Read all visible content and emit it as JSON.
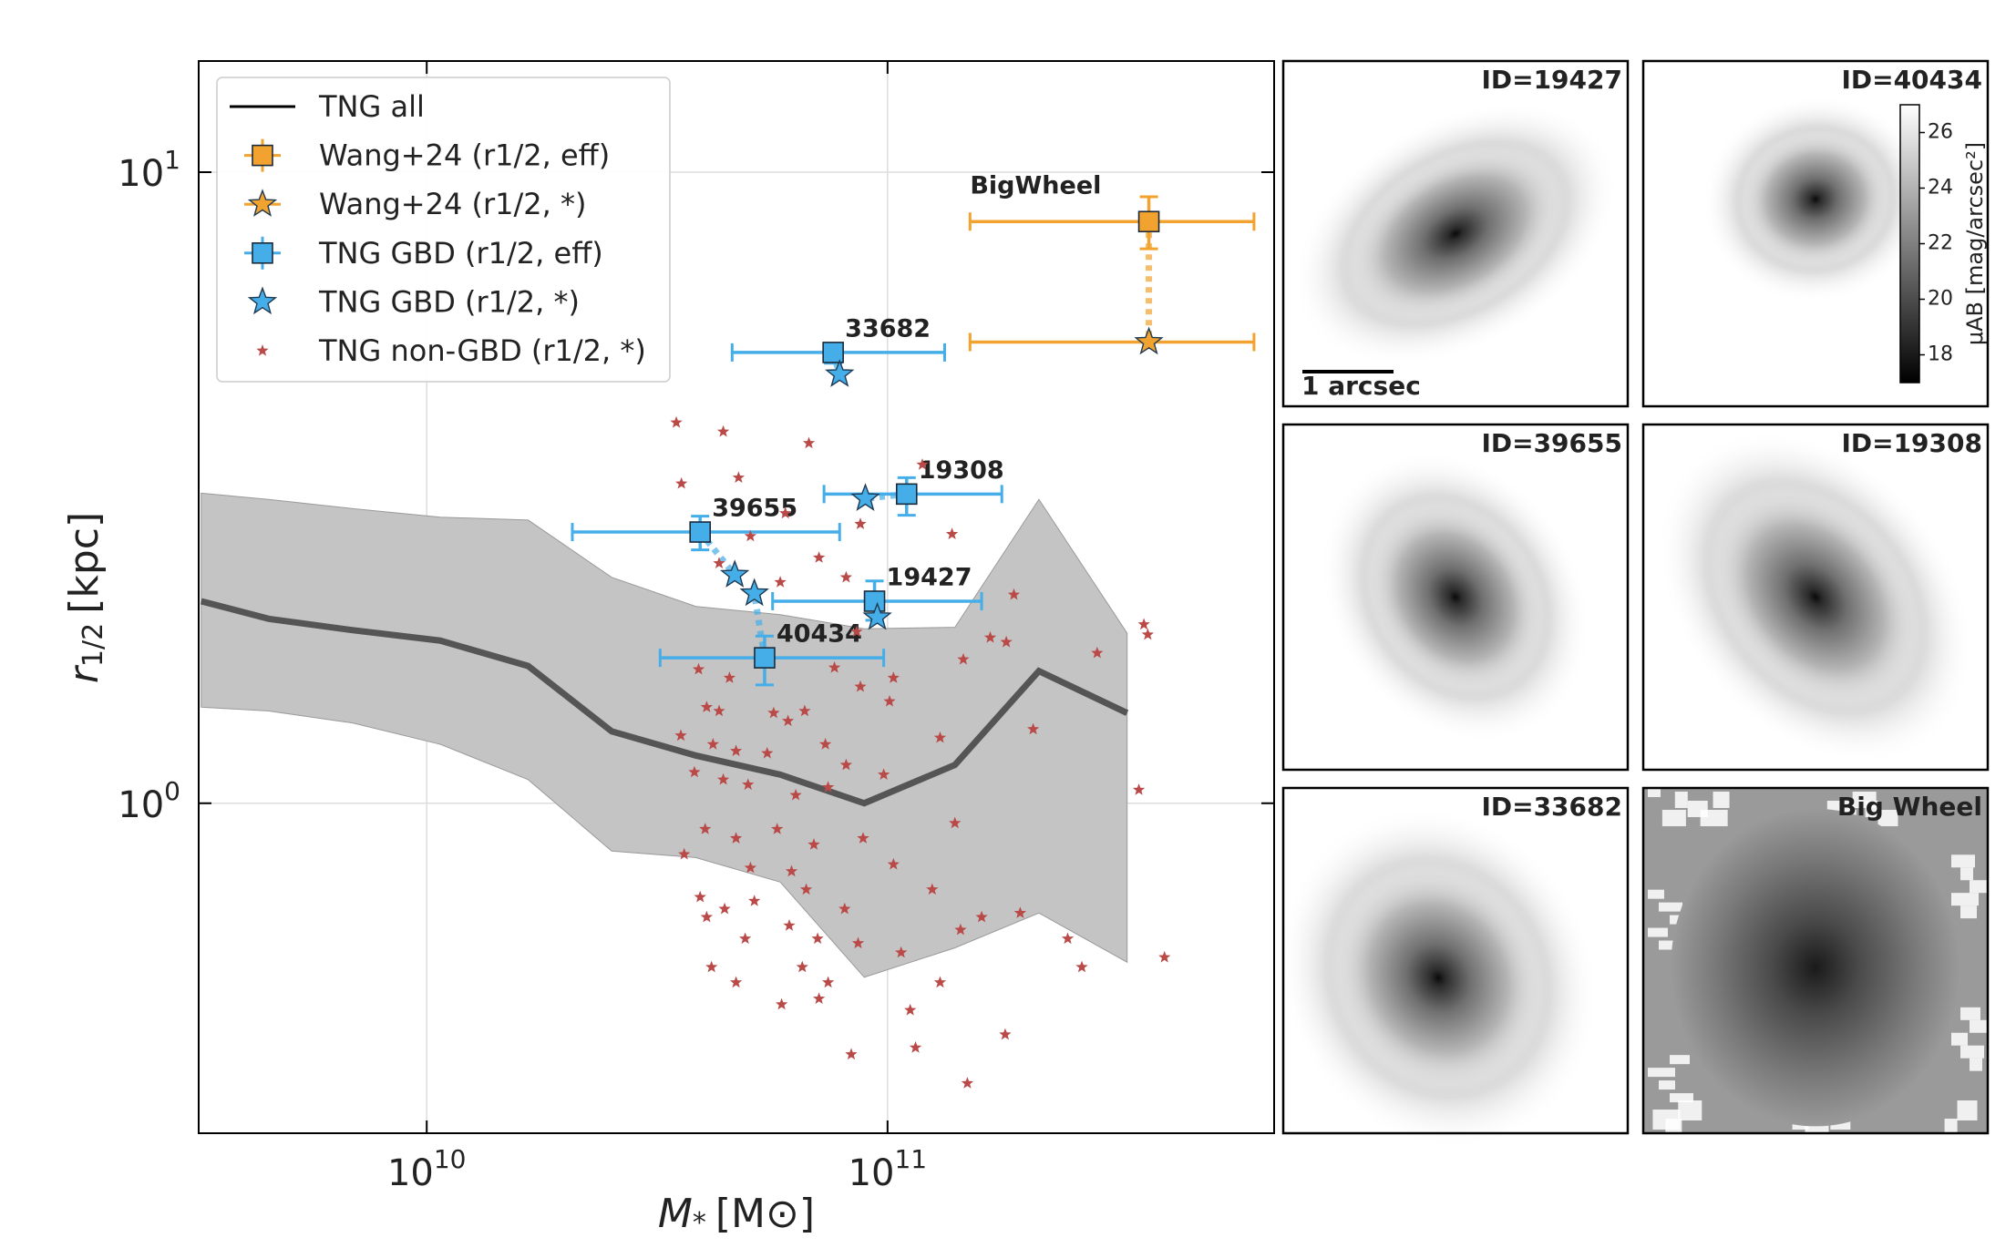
{
  "chart_data": {
    "type": "scatter",
    "xscale": "log",
    "yscale": "log",
    "grid": true,
    "legend": "upper left",
    "xlabel": {
      "symbol": "M",
      "sub": "*",
      "unit": "[M⊙]"
    },
    "ylabel": {
      "symbol": "r",
      "sub": "1/2",
      "unit": "[kpc]"
    },
    "xlim": [
      3200000000.0,
      690000000000.0
    ],
    "ylim": [
      0.3,
      15
    ],
    "xticks": [
      {
        "value": 10000000000.0,
        "label": "10",
        "exponent": "10"
      },
      {
        "value": 100000000000.0,
        "label": "10",
        "exponent": "11"
      }
    ],
    "yticks": [
      {
        "value": 1,
        "label": "10",
        "exponent": "0"
      },
      {
        "value": 10,
        "label": "10",
        "exponent": "1"
      }
    ],
    "series": [
      {
        "name": "TNG all",
        "marker": "line",
        "color": "#555555",
        "band_color": "#c4c4c4",
        "x": [
          3240000000.0,
          4540000000.0,
          6920000000.0,
          10700000000.0,
          16600000000.0,
          25200000000.0,
          38400000000.0,
          58500000000.0,
          89000000000.0,
          140000000000.0,
          213000000000.0,
          331000000000.0
        ],
        "values": [
          2.09,
          1.96,
          1.88,
          1.81,
          1.65,
          1.3,
          1.19,
          1.11,
          1.0,
          1.15,
          1.62,
          1.39
        ],
        "upper": [
          3.1,
          3.03,
          2.93,
          2.84,
          2.81,
          2.28,
          2.05,
          1.99,
          1.89,
          1.9,
          3.03,
          1.86
        ],
        "lower": [
          1.42,
          1.4,
          1.34,
          1.24,
          1.09,
          0.84,
          0.82,
          0.75,
          0.53,
          0.59,
          0.67,
          0.56
        ]
      },
      {
        "name": "Wang+24 (r1/2, eff)",
        "marker": "square",
        "color": "#f2a22e",
        "x": [
          369000000000.0
        ],
        "values": [
          8.35
        ],
        "x_low": [
          151000000000.0
        ],
        "x_high": [
          624000000000.0
        ],
        "y_low": [
          7.56
        ],
        "y_high": [
          9.14
        ],
        "labels": [
          "BigWheel"
        ]
      },
      {
        "name": "Wang+24 (r1/2, *)",
        "marker": "star",
        "color": "#f2a22e",
        "x": [
          369000000000.0
        ],
        "values": [
          5.38
        ],
        "x_low": [
          151000000000.0
        ],
        "x_high": [
          624000000000.0
        ]
      },
      {
        "name": "TNG GBD (r1/2, eff)",
        "marker": "square",
        "color": "#45aee8",
        "x": [
          76200000000.0,
          110000000000.0,
          39200000000.0,
          93700000000.0,
          54100000000.0
        ],
        "values": [
          5.18,
          3.09,
          2.69,
          2.09,
          1.7
        ],
        "x_low": [
          46000000000.0,
          72800000000.0,
          20700000000.0,
          56300000000.0,
          32100000000.0
        ],
        "x_high": [
          133000000000.0,
          177000000000.0,
          78700000000.0,
          160000000000.0,
          98100000000.0
        ],
        "y_low": [
          4.98,
          2.86,
          2.52,
          1.95,
          1.54
        ],
        "y_high": [
          5.35,
          3.28,
          2.85,
          2.25,
          1.84
        ],
        "labels": [
          "33682",
          "19308",
          "39655",
          "19427",
          "40434"
        ]
      },
      {
        "name": "TNG GBD (r1/2, *)",
        "marker": "star",
        "color": "#45aee8",
        "x": [
          78700000000.0,
          89500000000.0,
          46600000000.0,
          95000000000.0,
          51400000000.0
        ],
        "values": [
          4.78,
          3.04,
          2.3,
          1.97,
          2.15
        ]
      },
      {
        "name": "TNG non-GBD (r1/2, *)",
        "marker": "small-star",
        "color": "#b94a48",
        "x": [
          34800000000.0,
          44000000000.0,
          67500000000.0,
          47500000000.0,
          35700000000.0,
          119000000000.0,
          60000000000.0,
          87300000000.0,
          138000000000.0,
          50400000000.0,
          71000000000.0,
          81300000000.0,
          43100000000.0,
          58500000000.0,
          188000000000.0,
          360000000000.0,
          367000000000.0,
          285000000000.0,
          167000000000.0,
          181000000000.0,
          85700000000.0,
          146000000000.0,
          38900000000.0,
          45400000000.0,
          76700000000.0,
          87300000000.0,
          103000000000.0,
          40500000000.0,
          43100000000.0,
          56600000000.0,
          60800000000.0,
          66100000000.0,
          101000000000.0,
          207000000000.0,
          130000000000.0,
          35600000000.0,
          41800000000.0,
          46900000000.0,
          54800000000.0,
          73300000000.0,
          81300000000.0,
          38100000000.0,
          44000000000.0,
          49800000000.0,
          63200000000.0,
          74300000000.0,
          98100000000.0,
          140000000000.0,
          40200000000.0,
          46900000000.0,
          57600000000.0,
          69200000000.0,
          88500000000.0,
          36200000000.0,
          50400000000.0,
          61900000000.0,
          103000000000.0,
          125000000000.0,
          39200000000.0,
          44300000000.0,
          51400000000.0,
          66600000000.0,
          80700000000.0,
          40500000000.0,
          61200000000.0,
          70500000000.0,
          49100000000.0,
          86300000000.0,
          107000000000.0,
          144000000000.0,
          160000000000.0,
          194000000000.0,
          246000000000.0,
          264000000000.0,
          399000000000.0,
          41500000000.0,
          46900000000.0,
          65300000000.0,
          74300000000.0,
          58900000000.0,
          71000000000.0,
          112000000000.0,
          130000000000.0,
          180000000000.0,
          115000000000.0,
          83400000000.0,
          149000000000.0,
          351000000000.0
        ],
        "values": [
          4.01,
          3.88,
          3.72,
          3.28,
          3.21,
          3.44,
          2.88,
          2.77,
          2.67,
          2.65,
          2.45,
          2.28,
          2.4,
          2.24,
          2.14,
          1.92,
          1.85,
          1.73,
          1.83,
          1.8,
          1.87,
          1.69,
          1.63,
          1.58,
          1.64,
          1.53,
          1.58,
          1.42,
          1.4,
          1.39,
          1.35,
          1.4,
          1.45,
          1.31,
          1.27,
          1.28,
          1.24,
          1.21,
          1.2,
          1.24,
          1.15,
          1.12,
          1.09,
          1.07,
          1.03,
          1.06,
          1.11,
          0.93,
          0.91,
          0.88,
          0.91,
          0.86,
          0.88,
          0.83,
          0.79,
          0.78,
          0.8,
          0.73,
          0.71,
          0.68,
          0.7,
          0.73,
          0.68,
          0.66,
          0.64,
          0.61,
          0.61,
          0.6,
          0.58,
          0.63,
          0.66,
          0.67,
          0.61,
          0.55,
          0.57,
          0.55,
          0.52,
          0.55,
          0.52,
          0.48,
          0.49,
          0.47,
          0.52,
          0.43,
          0.41,
          0.4,
          0.36,
          1.05
        ]
      }
    ]
  },
  "panels": [
    {
      "label": "ID=19427",
      "scale_bar": "1 arcsec"
    },
    {
      "label": "ID=40434"
    },
    {
      "label": "ID=39655"
    },
    {
      "label": "ID=19308"
    },
    {
      "label": "ID=33682"
    },
    {
      "label": "Big Wheel"
    }
  ],
  "colorbar": {
    "label": "μAB [mag/arcsec²]",
    "lim": [
      17,
      27
    ],
    "ticks": [
      18,
      20,
      22,
      24,
      26
    ]
  }
}
